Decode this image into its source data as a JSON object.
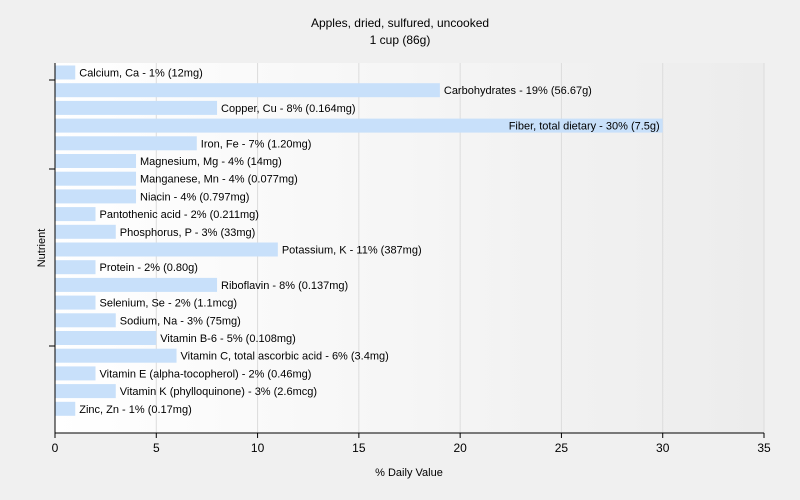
{
  "chart_data": {
    "type": "bar",
    "orientation": "horizontal",
    "title": "Apples, dried, sulfured, uncooked",
    "subtitle": "1 cup (86g)",
    "xlabel": "% Daily Value",
    "ylabel": "Nutrient",
    "xlim": [
      0,
      35
    ],
    "xticks": [
      "0",
      "5",
      "10",
      "15",
      "20",
      "25",
      "30",
      "35"
    ],
    "grid": true,
    "bar_color": "#c8e0fa",
    "categories": [
      "Calcium, Ca",
      "Carbohydrates",
      "Copper, Cu",
      "Fiber, total dietary",
      "Iron, Fe",
      "Magnesium, Mg",
      "Manganese, Mn",
      "Niacin",
      "Pantothenic acid",
      "Phosphorus, P",
      "Potassium, K",
      "Protein",
      "Riboflavin",
      "Selenium, Se",
      "Sodium, Na",
      "Vitamin B-6",
      "Vitamin C, total ascorbic acid",
      "Vitamin E (alpha-tocopherol)",
      "Vitamin K (phylloquinone)",
      "Zinc, Zn"
    ],
    "values": [
      1,
      19,
      8,
      30,
      7,
      4,
      4,
      4,
      2,
      3,
      11,
      2,
      8,
      2,
      3,
      5,
      6,
      2,
      3,
      1
    ],
    "labels": [
      "Calcium, Ca - 1% (12mg)",
      "Carbohydrates - 19% (56.67g)",
      "Copper, Cu - 8% (0.164mg)",
      "Fiber, total dietary - 30% (7.5g)",
      "Iron, Fe - 7% (1.20mg)",
      "Magnesium, Mg - 4% (14mg)",
      "Manganese, Mn - 4% (0.077mg)",
      "Niacin - 4% (0.797mg)",
      "Pantothenic acid - 2% (0.211mg)",
      "Phosphorus, P - 3% (33mg)",
      "Potassium, K - 11% (387mg)",
      "Protein - 2% (0.80g)",
      "Riboflavin - 8% (0.137mg)",
      "Selenium, Se - 2% (1.1mcg)",
      "Sodium, Na - 3% (75mg)",
      "Vitamin B-6 - 5% (0.108mg)",
      "Vitamin C, total ascorbic acid - 6% (3.4mg)",
      "Vitamin E (alpha-tocopherol) - 2% (0.46mg)",
      "Vitamin K (phylloquinone) - 3% (2.6mcg)",
      "Zinc, Zn - 1% (0.17mg)"
    ]
  }
}
